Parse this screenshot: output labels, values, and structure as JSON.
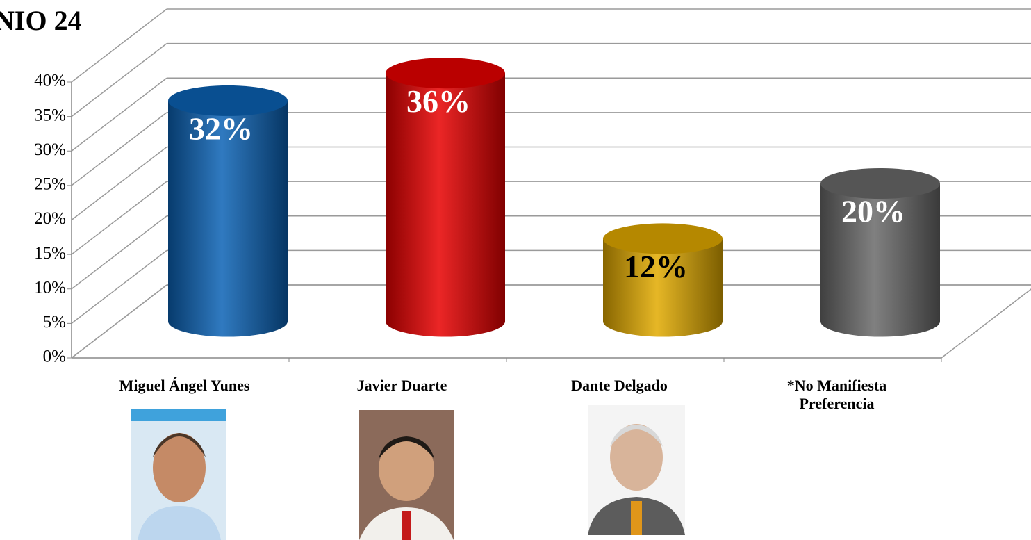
{
  "chart_data": {
    "type": "bar3d",
    "title": "NIO 24",
    "categories": [
      "Miguel Ángel Yunes",
      "Javier Duarte",
      "Dante Delgado",
      "*No Manifiesta Preferencia"
    ],
    "values": [
      32,
      36,
      12,
      20
    ],
    "value_labels": [
      "32%",
      "36%",
      "12%",
      "20%"
    ],
    "colors": [
      "#0b63b5",
      "#e80000",
      "#e2aa00",
      "#6a6a6a"
    ],
    "ylim": [
      0,
      40
    ],
    "yticks": [
      {
        "value": 0,
        "label": "0%"
      },
      {
        "value": 5,
        "label": "5%"
      },
      {
        "value": 10,
        "label": "10%"
      },
      {
        "value": 15,
        "label": "15%"
      },
      {
        "value": 20,
        "label": "20%"
      },
      {
        "value": 25,
        "label": "25%"
      },
      {
        "value": 30,
        "label": "30%"
      },
      {
        "value": 35,
        "label": "35%"
      },
      {
        "value": 40,
        "label": "40%"
      }
    ],
    "grid": true
  }
}
